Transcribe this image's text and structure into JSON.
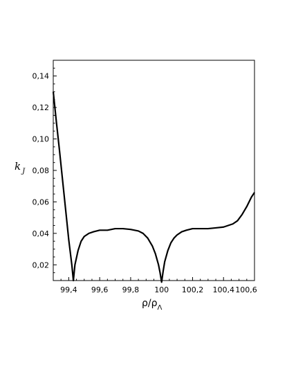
{
  "chart_data": {
    "type": "line",
    "title": "",
    "xlabel_main": "ρ/ρ",
    "xlabel_sub": "Λ",
    "ylabel_main": "k",
    "ylabel_sub": "J",
    "xlim": [
      99.3,
      100.6
    ],
    "ylim": [
      0.01,
      0.15
    ],
    "x_ticks": [
      99.4,
      99.6,
      99.8,
      100.0,
      100.2,
      100.4,
      100.6
    ],
    "x_tick_labels": [
      "99,4",
      "99,6",
      "99,8",
      "100",
      "100,2",
      "100,4",
      "100,6"
    ],
    "y_ticks": [
      0.02,
      0.04,
      0.06,
      0.08,
      0.1,
      0.12,
      0.14
    ],
    "y_tick_labels": [
      "0,02",
      "0,04",
      "0,06",
      "0,08",
      "0,10",
      "0,12",
      "0,14"
    ],
    "grid": false,
    "series": [
      {
        "color": "#000000",
        "x": [
          99.3,
          99.32,
          99.34,
          99.36,
          99.38,
          99.4,
          99.42,
          99.43,
          99.44,
          99.46,
          99.48,
          99.5,
          99.53,
          99.56,
          99.6,
          99.65,
          99.7,
          99.75,
          99.8,
          99.85,
          99.88,
          99.91,
          99.94,
          99.96,
          99.98,
          99.99,
          100.0,
          100.01,
          100.02,
          100.04,
          100.06,
          100.08,
          100.1,
          100.13,
          100.16,
          100.2,
          100.25,
          100.3,
          100.35,
          100.4,
          100.43,
          100.46,
          100.49,
          100.52,
          100.55,
          100.58,
          100.6
        ],
        "y": [
          0.13,
          0.111,
          0.093,
          0.074,
          0.055,
          0.036,
          0.02,
          0.01,
          0.02,
          0.029,
          0.035,
          0.038,
          0.04,
          0.041,
          0.042,
          0.042,
          0.043,
          0.043,
          0.0425,
          0.0415,
          0.04,
          0.037,
          0.032,
          0.027,
          0.02,
          0.015,
          0.009,
          0.016,
          0.022,
          0.029,
          0.034,
          0.037,
          0.039,
          0.041,
          0.042,
          0.043,
          0.043,
          0.043,
          0.0435,
          0.044,
          0.045,
          0.046,
          0.048,
          0.052,
          0.057,
          0.063,
          0.066
        ]
      }
    ]
  }
}
